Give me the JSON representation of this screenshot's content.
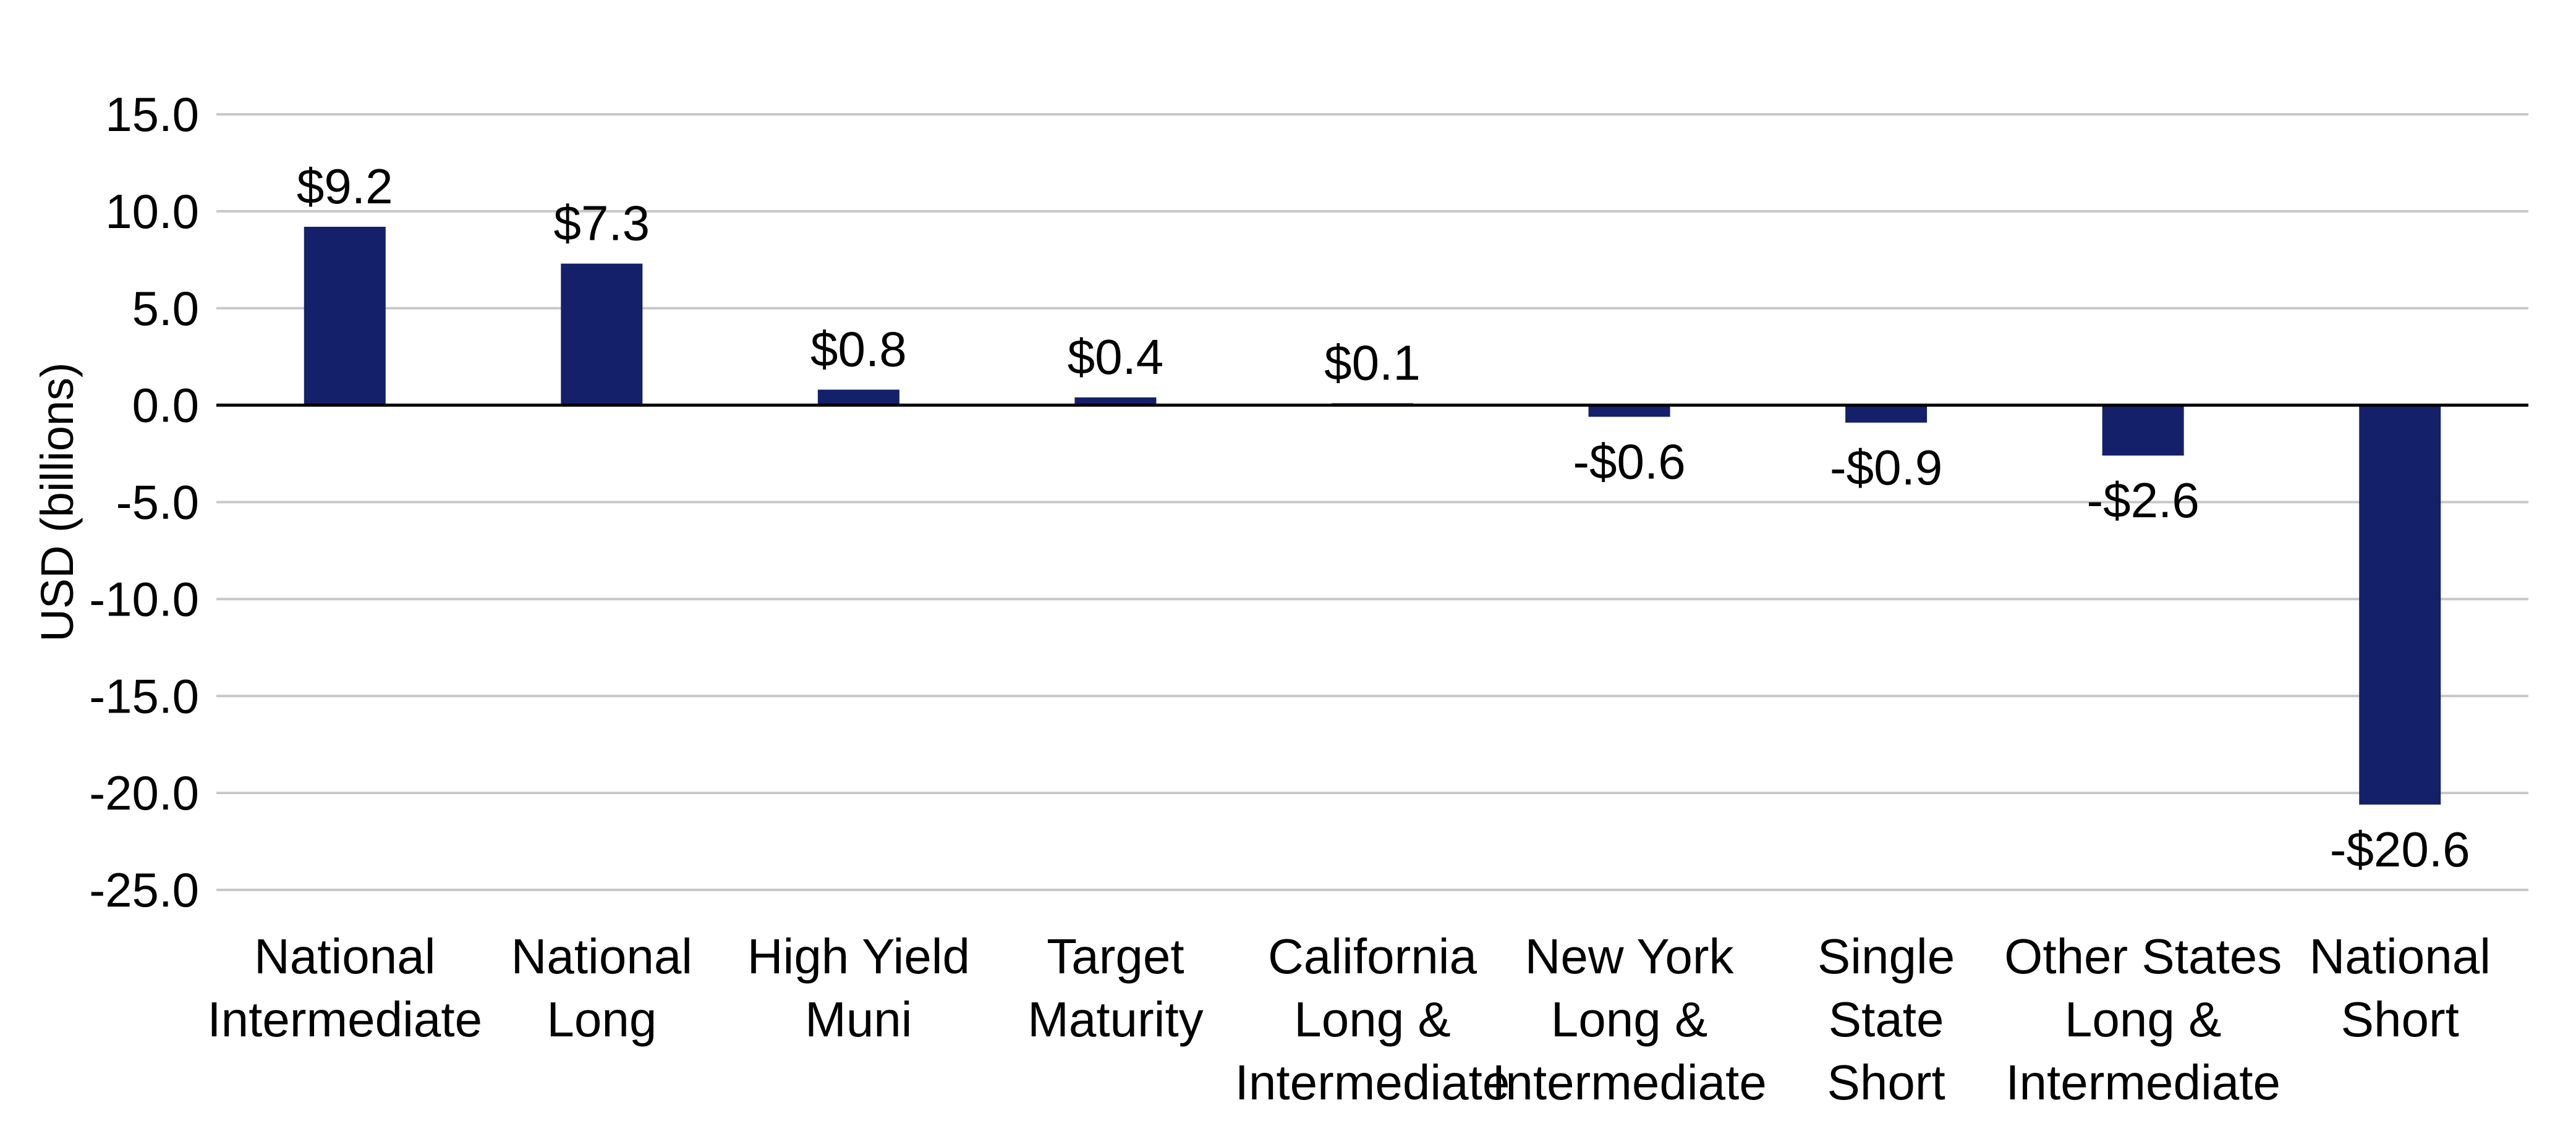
{
  "chart_data": {
    "type": "bar",
    "title": "",
    "xlabel": "",
    "ylabel": "USD (billions)",
    "ylim": [
      -25,
      15
    ],
    "yticks": [
      15,
      10,
      5,
      0,
      -5,
      -10,
      -15,
      -20,
      -25
    ],
    "ytick_labels": [
      "15.0",
      "10.0",
      "5.0",
      "0.0",
      "-5.0",
      "-10.0",
      "-15.0",
      "-20.0",
      "-25.0"
    ],
    "grid": true,
    "legend": "none",
    "bar_color": "#14206a",
    "categories": [
      [
        "National",
        "Intermediate"
      ],
      [
        "National",
        "Long"
      ],
      [
        "High Yield",
        "Muni"
      ],
      [
        "Target",
        "Maturity"
      ],
      [
        "California",
        "Long &",
        "Intermediate"
      ],
      [
        "New York",
        "Long &",
        "Intermediate"
      ],
      [
        "Single",
        "State",
        "Short"
      ],
      [
        "Other States",
        "Long &",
        "Intermediate"
      ],
      [
        "National",
        "Short"
      ]
    ],
    "values": [
      9.2,
      7.3,
      0.8,
      0.4,
      0.1,
      -0.6,
      -0.9,
      -2.6,
      -20.6
    ],
    "data_labels": [
      "$9.2",
      "$7.3",
      "$0.8",
      "$0.4",
      "$0.1",
      "-$0.6",
      "-$0.9",
      "-$2.6",
      "-$20.6"
    ]
  }
}
